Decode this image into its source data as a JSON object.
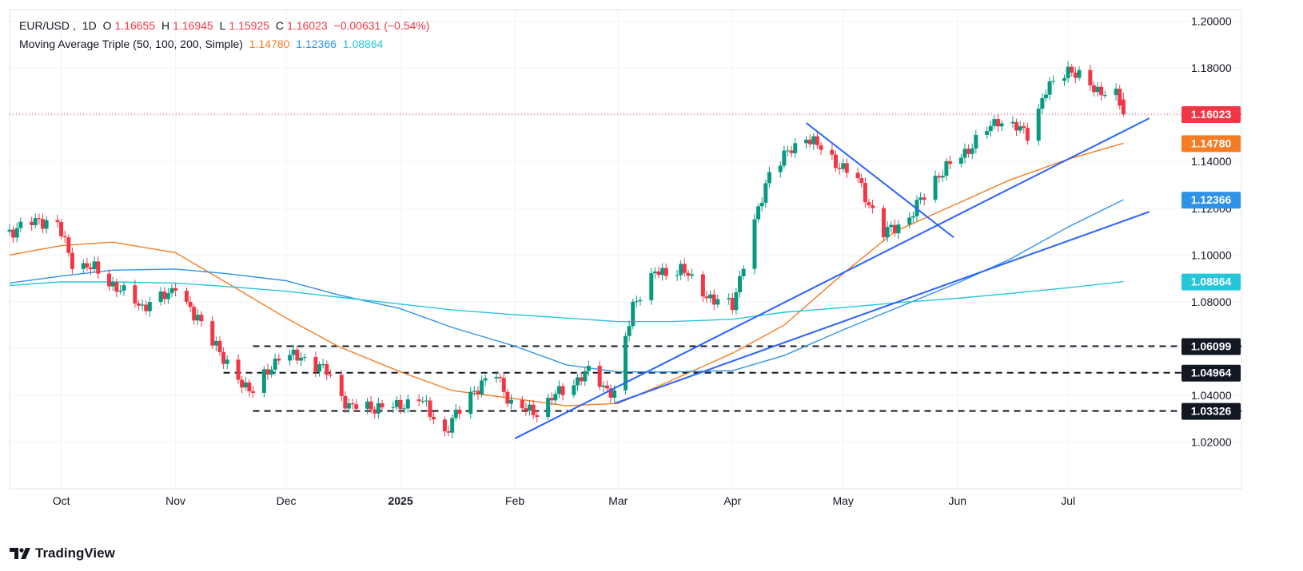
{
  "header": {
    "symbol": "EUR/USD",
    "interval": "1D",
    "open_label": "O",
    "open": "1.16655",
    "high_label": "H",
    "high": "1.16945",
    "low_label": "L",
    "low": "1.15925",
    "close_label": "C",
    "close": "1.16023",
    "change": "−0.00631 (−0.54%)",
    "indicator": "Moving Average Triple (50, 100, 200, Simple)",
    "ma50_value": "1.14780",
    "ma100_value": "1.12366",
    "ma200_value": "1.08864"
  },
  "brand": "TradingView",
  "colors": {
    "up": "#089981",
    "down": "#f23645",
    "ma50": "#f57c22",
    "ma100": "#2e93e8",
    "ma200": "#26c6da",
    "trendline": "#2962ff",
    "grid": "#f0f3fa",
    "axis_text": "#131722"
  },
  "chart_data": {
    "type": "candlestick",
    "symbol": "EUR/USD",
    "interval": "1D",
    "ylim": [
      1.0,
      1.205
    ],
    "xlim": [
      "2024-09-17",
      "2025-08-17"
    ],
    "y_ticks": [
      1.02,
      1.04,
      1.06,
      1.08,
      1.1,
      1.12,
      1.14,
      1.16,
      1.18,
      1.2
    ],
    "y_tick_labels": [
      "1.02000",
      "1.04000",
      "1.06000",
      "1.08000",
      "1.10000",
      "1.12000",
      "1.14000",
      "1.16000",
      "1.18000",
      "1.20000"
    ],
    "x_ticks": [
      {
        "date": "2024-10-01",
        "label": "Oct",
        "bold": false
      },
      {
        "date": "2024-11-01",
        "label": "Nov",
        "bold": false
      },
      {
        "date": "2024-12-01",
        "label": "Dec",
        "bold": false
      },
      {
        "date": "2025-01-01",
        "label": "2025",
        "bold": true
      },
      {
        "date": "2025-02-01",
        "label": "Feb",
        "bold": false
      },
      {
        "date": "2025-03-01",
        "label": "Mar",
        "bold": false
      },
      {
        "date": "2025-04-01",
        "label": "Apr",
        "bold": false
      },
      {
        "date": "2025-05-01",
        "label": "May",
        "bold": false
      },
      {
        "date": "2025-06-01",
        "label": "Jun",
        "bold": false
      },
      {
        "date": "2025-07-01",
        "label": "Jul",
        "bold": false
      }
    ],
    "price_path": [
      [
        "2024-09-17",
        1.11
      ],
      [
        "2024-09-25",
        1.115
      ],
      [
        "2024-09-30",
        1.113
      ],
      [
        "2024-10-04",
        1.097
      ],
      [
        "2024-10-10",
        1.094
      ],
      [
        "2024-10-16",
        1.086
      ],
      [
        "2024-10-23",
        1.078
      ],
      [
        "2024-10-30",
        1.083
      ],
      [
        "2024-11-01",
        1.088
      ],
      [
        "2024-11-06",
        1.073
      ],
      [
        "2024-11-08",
        1.072
      ],
      [
        "2024-11-12",
        1.062
      ],
      [
        "2024-11-14",
        1.054
      ],
      [
        "2024-11-22",
        1.041
      ],
      [
        "2024-11-29",
        1.057
      ],
      [
        "2024-12-06",
        1.056
      ],
      [
        "2024-12-12",
        1.05
      ],
      [
        "2024-12-18",
        1.035
      ],
      [
        "2024-12-31",
        1.035
      ],
      [
        "2025-01-06",
        1.039
      ],
      [
        "2025-01-13",
        1.024
      ],
      [
        "2025-01-20",
        1.041
      ],
      [
        "2025-01-27",
        1.049
      ],
      [
        "2025-01-31",
        1.036
      ],
      [
        "2025-02-03",
        1.034
      ],
      [
        "2025-02-07",
        1.033
      ],
      [
        "2025-02-12",
        1.04
      ],
      [
        "2025-02-21",
        1.05
      ],
      [
        "2025-02-28",
        1.04
      ],
      [
        "2025-03-05",
        1.079
      ],
      [
        "2025-03-11",
        1.092
      ],
      [
        "2025-03-18",
        1.094
      ],
      [
        "2025-03-27",
        1.08
      ],
      [
        "2025-04-01",
        1.079
      ],
      [
        "2025-04-04",
        1.096
      ],
      [
        "2025-04-11",
        1.136
      ],
      [
        "2025-04-21",
        1.151
      ],
      [
        "2025-04-28",
        1.141
      ],
      [
        "2025-05-05",
        1.132
      ],
      [
        "2025-05-12",
        1.109
      ],
      [
        "2025-05-19",
        1.116
      ],
      [
        "2025-05-26",
        1.133
      ],
      [
        "2025-06-03",
        1.144
      ],
      [
        "2025-06-12",
        1.158
      ],
      [
        "2025-06-20",
        1.152
      ],
      [
        "2025-06-25",
        1.17
      ],
      [
        "2025-07-01",
        1.18
      ],
      [
        "2025-07-07",
        1.172
      ],
      [
        "2025-07-14",
        1.168
      ],
      [
        "2025-07-16",
        1.16023
      ]
    ],
    "series": [
      {
        "name": "SMA 50",
        "color": "#f57c22",
        "last_value": 1.1478,
        "points": [
          [
            "2024-09-17",
            1.1
          ],
          [
            "2024-10-01",
            1.104
          ],
          [
            "2024-10-15",
            1.1055
          ],
          [
            "2024-11-01",
            1.101
          ],
          [
            "2024-11-15",
            1.088
          ],
          [
            "2024-12-01",
            1.073
          ],
          [
            "2024-12-15",
            1.061
          ],
          [
            "2025-01-01",
            1.05
          ],
          [
            "2025-01-15",
            1.042
          ],
          [
            "2025-02-01",
            1.0385
          ],
          [
            "2025-02-15",
            1.0355
          ],
          [
            "2025-03-01",
            1.0365
          ],
          [
            "2025-03-15",
            1.046
          ],
          [
            "2025-04-01",
            1.058
          ],
          [
            "2025-04-15",
            1.07
          ],
          [
            "2025-05-01",
            1.092
          ],
          [
            "2025-05-15",
            1.11
          ],
          [
            "2025-06-01",
            1.122
          ],
          [
            "2025-06-15",
            1.132
          ],
          [
            "2025-07-01",
            1.141
          ],
          [
            "2025-07-16",
            1.1478
          ]
        ]
      },
      {
        "name": "SMA 100",
        "color": "#2e93e8",
        "last_value": 1.12366,
        "points": [
          [
            "2024-09-17",
            1.088
          ],
          [
            "2024-10-01",
            1.091
          ],
          [
            "2024-10-15",
            1.0935
          ],
          [
            "2024-11-01",
            1.094
          ],
          [
            "2024-11-15",
            1.092
          ],
          [
            "2024-12-01",
            1.089
          ],
          [
            "2024-12-15",
            1.083
          ],
          [
            "2025-01-01",
            1.077
          ],
          [
            "2025-01-15",
            1.069
          ],
          [
            "2025-02-01",
            1.061
          ],
          [
            "2025-02-15",
            1.053
          ],
          [
            "2025-03-01",
            1.05
          ],
          [
            "2025-03-15",
            1.05
          ],
          [
            "2025-04-01",
            1.0505
          ],
          [
            "2025-04-15",
            1.057
          ],
          [
            "2025-05-01",
            1.068
          ],
          [
            "2025-05-15",
            1.077
          ],
          [
            "2025-06-01",
            1.088
          ],
          [
            "2025-06-15",
            1.098
          ],
          [
            "2025-07-01",
            1.112
          ],
          [
            "2025-07-16",
            1.12366
          ]
        ]
      },
      {
        "name": "SMA 200",
        "color": "#26c6da",
        "last_value": 1.08864,
        "points": [
          [
            "2024-09-17",
            1.087
          ],
          [
            "2024-10-01",
            1.0885
          ],
          [
            "2024-10-15",
            1.0885
          ],
          [
            "2024-11-01",
            1.088
          ],
          [
            "2024-11-15",
            1.0865
          ],
          [
            "2024-12-01",
            1.0845
          ],
          [
            "2024-12-15",
            1.082
          ],
          [
            "2025-01-01",
            1.079
          ],
          [
            "2025-01-15",
            1.0765
          ],
          [
            "2025-02-01",
            1.0745
          ],
          [
            "2025-02-15",
            1.073
          ],
          [
            "2025-03-01",
            1.0715
          ],
          [
            "2025-03-15",
            1.0715
          ],
          [
            "2025-04-01",
            1.0725
          ],
          [
            "2025-04-15",
            1.0755
          ],
          [
            "2025-05-01",
            1.0775
          ],
          [
            "2025-05-15",
            1.0795
          ],
          [
            "2025-06-01",
            1.0815
          ],
          [
            "2025-06-15",
            1.0835
          ],
          [
            "2025-07-01",
            1.086
          ],
          [
            "2025-07-16",
            1.08864
          ]
        ]
      }
    ],
    "horizontal_levels": [
      {
        "value": 1.06099,
        "label": "1.06099",
        "start": "2024-11-22"
      },
      {
        "value": 1.04964,
        "label": "1.04964",
        "start": "2024-11-14"
      },
      {
        "value": 1.03326,
        "label": "1.03326",
        "start": "2024-11-22"
      }
    ],
    "last_price_line": {
      "value": 1.16023,
      "label": "1.16023"
    },
    "trendlines": [
      {
        "from": [
          "2025-02-01",
          1.0215
        ],
        "to": [
          "2025-07-23",
          1.1585
        ]
      },
      {
        "from": [
          "2025-02-28",
          1.0365
        ],
        "to": [
          "2025-07-23",
          1.1185
        ]
      },
      {
        "from": [
          "2025-04-21",
          1.1565
        ],
        "to": [
          "2025-05-31",
          1.1075
        ]
      }
    ],
    "price_labels": [
      {
        "value": 1.16023,
        "label": "1.16023",
        "color": "#f23645"
      },
      {
        "value": 1.1478,
        "label": "1.14780",
        "color": "#f57c22"
      },
      {
        "value": 1.12366,
        "label": "1.12366",
        "color": "#2e93e8"
      },
      {
        "value": 1.08864,
        "label": "1.08864",
        "color": "#26c6da"
      },
      {
        "value": 1.06099,
        "label": "1.06099",
        "color": "#131722"
      },
      {
        "value": 1.04964,
        "label": "1.04964",
        "color": "#131722"
      },
      {
        "value": 1.03326,
        "label": "1.03326",
        "color": "#131722"
      }
    ]
  }
}
